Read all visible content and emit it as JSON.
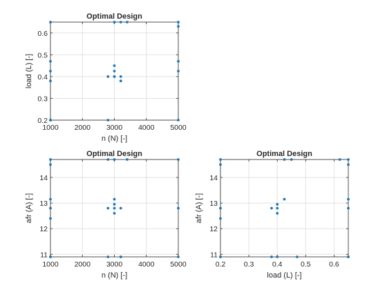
{
  "colors": {
    "marker": "#1f77b4",
    "grid": "#e2e2e2",
    "axis": "#262626",
    "background": "#ffffff"
  },
  "chart_data": [
    {
      "type": "scatter",
      "title": "Optimal Design",
      "xlabel": "n (N) [-]",
      "ylabel": "load (L) [-]",
      "xlim": [
        1000,
        5000
      ],
      "ylim": [
        0.2,
        0.65
      ],
      "xticks": [
        "1000",
        "2000",
        "3000",
        "4000",
        "5000"
      ],
      "yticks": [
        "0.2",
        "0.3",
        "0.4",
        "0.5",
        "0.6"
      ],
      "xtick_values": [
        1000,
        2000,
        3000,
        4000,
        5000
      ],
      "ytick_values": [
        0.2,
        0.3,
        0.4,
        0.5,
        0.6
      ],
      "grid": true,
      "x": [
        1000,
        1000,
        1000,
        1000,
        1000,
        1000,
        3000,
        3000,
        3000,
        3000,
        2800,
        3200,
        3200,
        3000,
        3200,
        3400,
        2800,
        5000,
        5000,
        5000,
        5000,
        5000
      ],
      "y": [
        0.65,
        0.47,
        0.425,
        0.38,
        0.2,
        0.2,
        0.45,
        0.425,
        0.4,
        0.4,
        0.4,
        0.4,
        0.38,
        0.65,
        0.65,
        0.65,
        0.2,
        0.65,
        0.63,
        0.47,
        0.425,
        0.2
      ]
    },
    {
      "type": "scatter",
      "title": "Optimal Design",
      "xlabel": "n (N) [-]",
      "ylabel": "afr (A) [-]",
      "xlim": [
        1000,
        5000
      ],
      "ylim": [
        10.9,
        14.7
      ],
      "xticks": [
        "1000",
        "2000",
        "3000",
        "4000",
        "5000"
      ],
      "yticks": [
        "11",
        "12",
        "13",
        "14"
      ],
      "xtick_values": [
        1000,
        2000,
        3000,
        4000,
        5000
      ],
      "ytick_values": [
        11,
        12,
        13,
        14
      ],
      "grid": true,
      "x": [
        1000,
        1000,
        1000,
        1000,
        1000,
        1000,
        1000,
        3000,
        3000,
        3000,
        3000,
        2800,
        3200,
        3000,
        2800,
        3200,
        3400,
        2800,
        3200,
        5000,
        5000,
        5000
      ],
      "y": [
        14.7,
        14.5,
        13.15,
        12.8,
        12.4,
        10.9,
        10.9,
        13.15,
        12.95,
        12.8,
        12.6,
        12.8,
        12.8,
        14.7,
        14.7,
        10.9,
        14.7,
        10.9,
        10.9,
        14.7,
        12.8,
        10.9
      ]
    },
    {
      "type": "scatter",
      "title": "Optimal Design",
      "xlabel": "load (L) [-]",
      "ylabel": "afr (A) [-]",
      "xlim": [
        0.2,
        0.65
      ],
      "ylim": [
        10.9,
        14.7
      ],
      "xticks": [
        "0.2",
        "0.3",
        "0.4",
        "0.5",
        "0.6"
      ],
      "yticks": [
        "11",
        "12",
        "13",
        "14"
      ],
      "xtick_values": [
        0.2,
        0.3,
        0.4,
        0.5,
        0.6
      ],
      "ytick_values": [
        11,
        12,
        13,
        14
      ],
      "grid": true,
      "x": [
        0.2,
        0.2,
        0.2,
        0.2,
        0.2,
        0.2,
        0.4,
        0.4,
        0.4,
        0.38,
        0.425,
        0.4,
        0.425,
        0.45,
        0.47,
        0.38,
        0.62,
        0.65,
        0.65,
        0.65,
        0.65,
        0.65,
        0.65
      ],
      "y": [
        14.7,
        14.5,
        12.8,
        12.4,
        10.9,
        10.9,
        12.95,
        12.8,
        12.6,
        12.8,
        13.15,
        10.9,
        14.7,
        14.7,
        10.9,
        10.9,
        14.7,
        14.7,
        14.5,
        13.15,
        12.8,
        10.9,
        10.9
      ]
    }
  ]
}
